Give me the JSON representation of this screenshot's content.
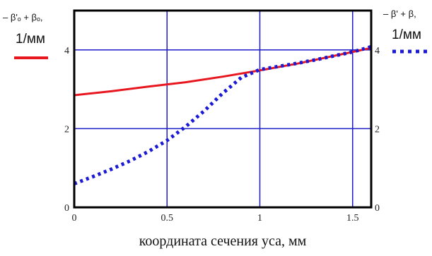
{
  "chart_data": {
    "type": "line",
    "title": "",
    "xlabel": "координата сечения уса, мм",
    "xlim": [
      0,
      1.6
    ],
    "ylim": [
      0,
      5
    ],
    "grid": true,
    "x_ticks": [
      "0",
      "0.5",
      "1",
      "1.5"
    ],
    "x_tick_values": [
      0,
      0.5,
      1,
      1.5
    ],
    "y_ticks_left": [
      "0",
      "2",
      "4"
    ],
    "y_ticks_right": [
      "0",
      "2",
      "4"
    ],
    "y_tick_values": [
      0,
      2,
      4
    ],
    "legend": {
      "left": {
        "label_line1": "– β'ₒ + βₒ,",
        "label_line2": "1/мм",
        "placement": "top-left, outside plot"
      },
      "right": {
        "label_line1": "– β' + β,",
        "label_line2": "1/мм",
        "placement": "top-right, outside plot"
      }
    },
    "series": [
      {
        "style": "solid",
        "color": "#e8171f",
        "x": [
          0,
          0.2,
          0.4,
          0.6,
          0.8,
          1.0,
          1.2,
          1.4,
          1.6
        ],
        "y": [
          2.85,
          2.95,
          3.07,
          3.18,
          3.32,
          3.48,
          3.65,
          3.85,
          4.05
        ]
      },
      {
        "style": "dotted",
        "color": "#1a1ad6",
        "x": [
          0,
          0.1,
          0.2,
          0.3,
          0.4,
          0.5,
          0.6,
          0.7,
          0.8,
          0.9,
          1.0,
          1.1,
          1.2,
          1.3,
          1.4,
          1.5,
          1.6
        ],
        "y": [
          0.6,
          0.78,
          0.97,
          1.18,
          1.42,
          1.7,
          2.05,
          2.45,
          2.9,
          3.3,
          3.5,
          3.58,
          3.66,
          3.75,
          3.85,
          3.95,
          4.08
        ]
      }
    ],
    "colors": {
      "frame": "#000000",
      "grid": "#1c1cc8"
    }
  }
}
